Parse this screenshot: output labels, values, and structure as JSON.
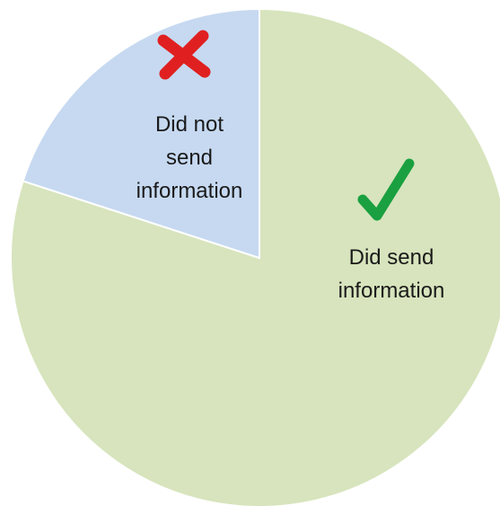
{
  "chart_data": {
    "type": "pie",
    "categories": [
      "Did send information",
      "Did not send information"
    ],
    "values": [
      80,
      20
    ],
    "colors": [
      "#d7e4bd",
      "#c6d9f1"
    ]
  }
}
